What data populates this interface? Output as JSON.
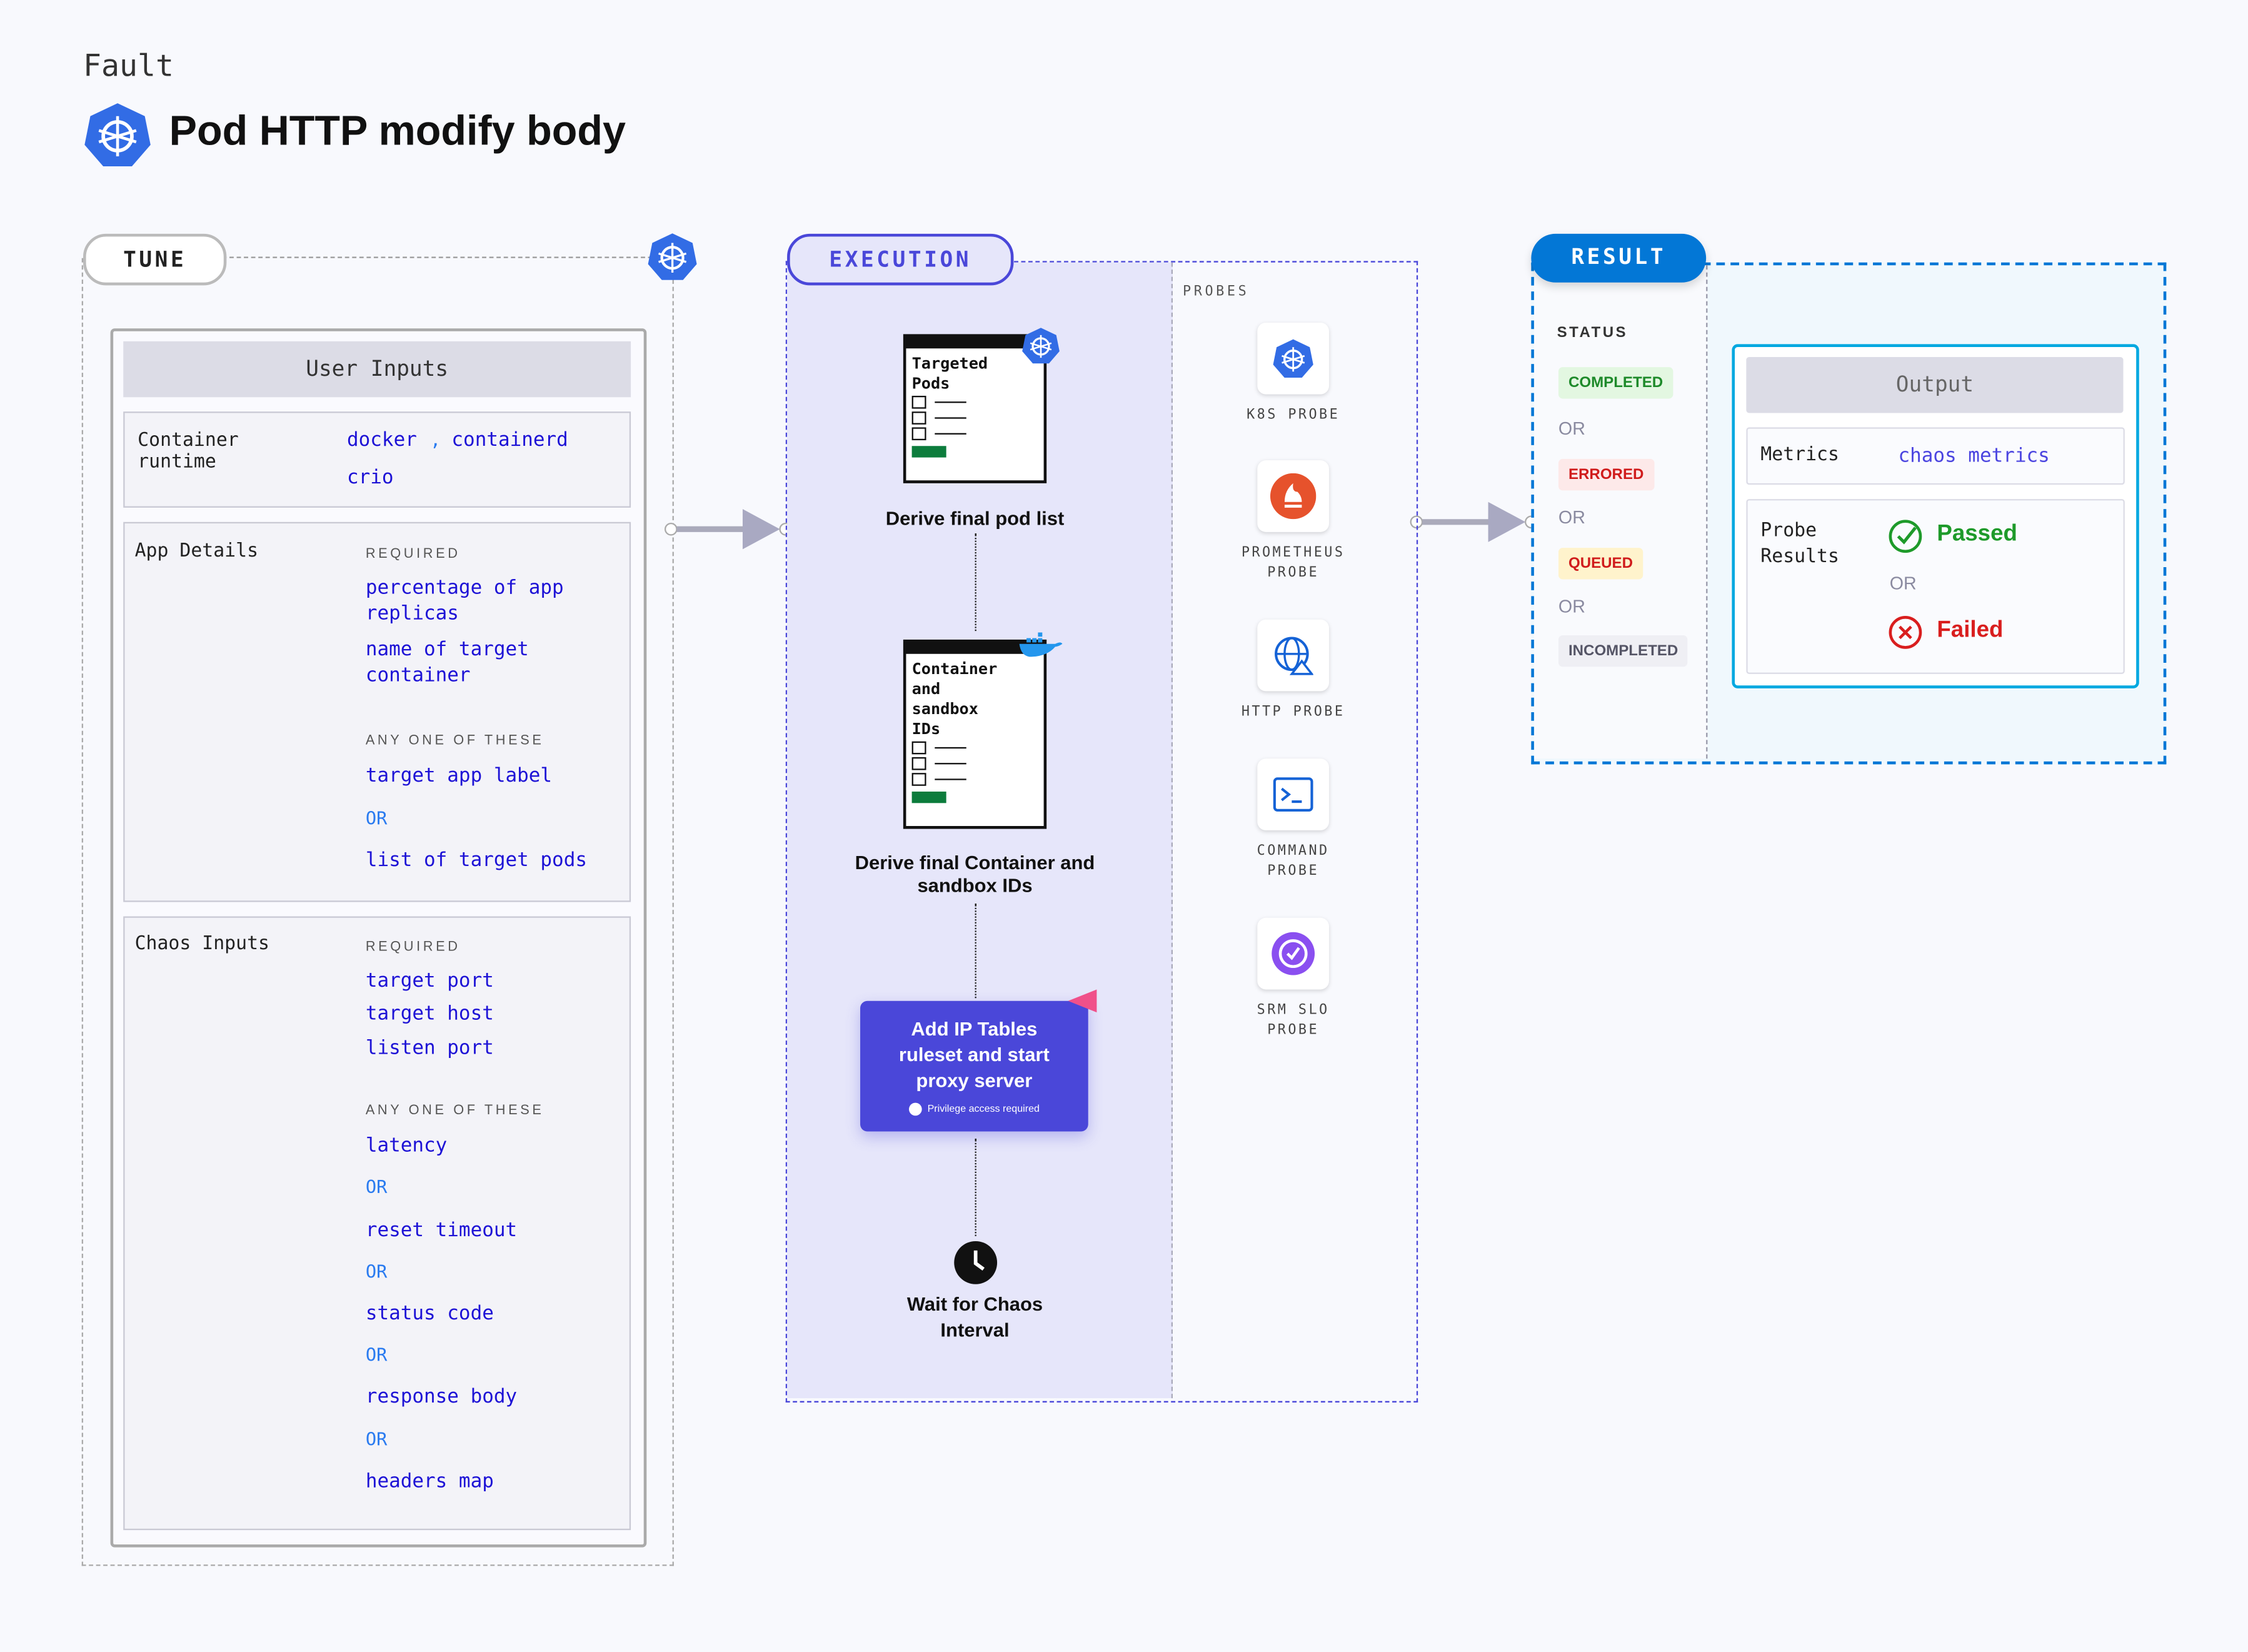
{
  "header": {
    "kicker": "Fault",
    "title": "Pod HTTP modify body",
    "logo_icon": "kubernetes-icon"
  },
  "tune": {
    "label": "TUNE",
    "user_inputs": {
      "title": "User Inputs",
      "container_runtime": {
        "label": "Container runtime",
        "values": [
          "docker",
          ",",
          "containerd",
          "crio"
        ]
      },
      "app_details": {
        "label": "App Details",
        "required_caption": "REQUIRED",
        "required": [
          "percentage of app replicas",
          "name of target container"
        ],
        "any_caption": "ANY ONE OF THESE",
        "any": [
          "target app label",
          "list of target pods"
        ],
        "or": "OR"
      },
      "chaos_inputs": {
        "label": "Chaos Inputs",
        "required_caption": "REQUIRED",
        "required": [
          "target port",
          "target host",
          "listen port"
        ],
        "any_caption": "ANY ONE OF THESE",
        "any": [
          "latency",
          "reset timeout",
          "status code",
          "response body",
          "headers map"
        ],
        "or": "OR"
      }
    }
  },
  "execution": {
    "label": "EXECUTION",
    "steps": [
      {
        "card_title": "Targeted Pods",
        "caption": "Derive final pod list",
        "badge_icon": "kubernetes-icon"
      },
      {
        "card_title": "Container and sandbox IDs",
        "caption": "Derive final Container and sandbox IDs",
        "badge_icon": "docker-icon"
      },
      {
        "box_title": "Add IP Tables ruleset and start proxy server",
        "note": "Privilege access required",
        "badge_icon": "harness-icon"
      },
      {
        "caption": "Wait for Chaos Interval",
        "icon": "clock-icon"
      }
    ],
    "probes_label": "PROBES",
    "probes": [
      {
        "name": "K8S PROBE",
        "icon": "kubernetes-icon"
      },
      {
        "name": "PROMETHEUS PROBE",
        "icon": "prometheus-icon"
      },
      {
        "name": "HTTP PROBE",
        "icon": "globe-icon"
      },
      {
        "name": "COMMAND PROBE",
        "icon": "terminal-icon"
      },
      {
        "name": "SRM SLO PROBE",
        "icon": "slo-icon"
      }
    ]
  },
  "result": {
    "label": "RESULT",
    "status_label": "STATUS",
    "statuses": [
      {
        "text": "COMPLETED",
        "color": "#1e8a2a",
        "bg": "#e3f7e1"
      },
      {
        "text": "ERRORED",
        "color": "#d01c1c",
        "bg": "#fde9e9"
      },
      {
        "text": "QUEUED",
        "color": "#d01c1c",
        "bg": "#fff3cc"
      },
      {
        "text": "INCOMPLETED",
        "color": "#555566",
        "bg": "#efeff4"
      }
    ],
    "or": "OR",
    "output": {
      "title": "Output",
      "metrics_label": "Metrics",
      "metrics_value": "chaos metrics",
      "probe_label": "Probe Results",
      "passed": "Passed",
      "failed": "Failed",
      "or": "OR"
    }
  },
  "colors": {
    "accent": "#1d12d6",
    "result_blue": "#0377d6",
    "execution_bg": "#e6e6fa",
    "exec_box": "#4a47d9"
  }
}
